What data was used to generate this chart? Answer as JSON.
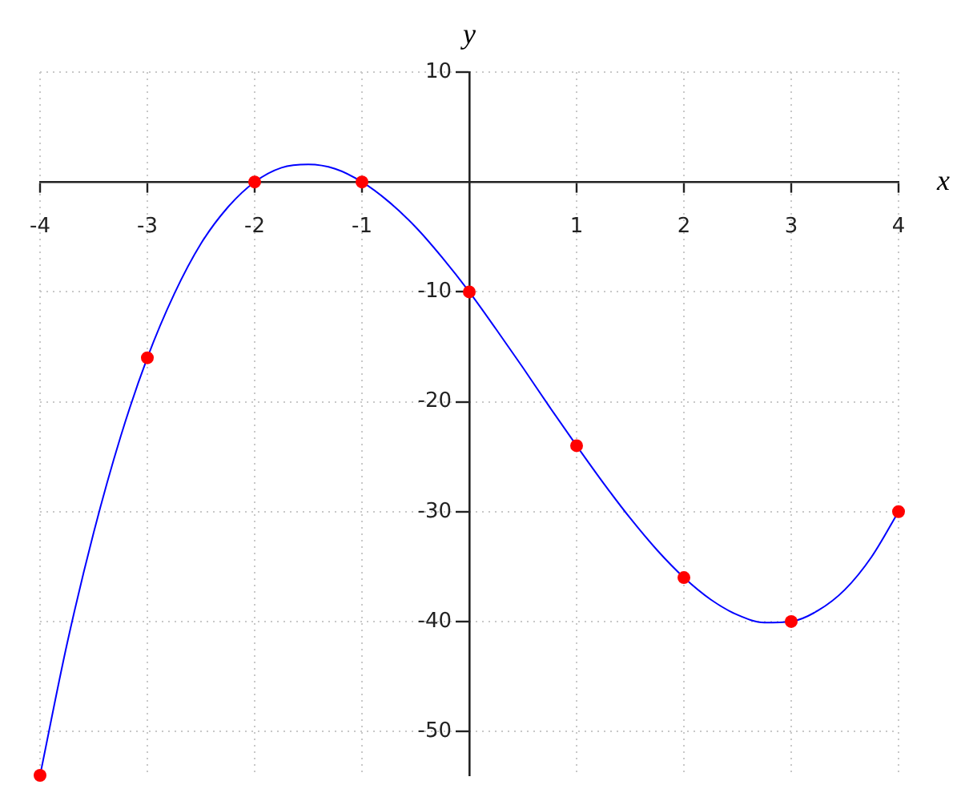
{
  "chart_data": {
    "type": "line",
    "xlabel": "x",
    "ylabel": "y",
    "xlim": [
      -4,
      4
    ],
    "ylim": [
      -54,
      10
    ],
    "xticks": [
      -4,
      -3,
      -2,
      -1,
      1,
      2,
      3,
      4
    ],
    "yticks": [
      10,
      -10,
      -20,
      -30,
      -40,
      -50
    ],
    "grid": true,
    "series": [
      {
        "type": "line",
        "color": "#0000ff",
        "marker": "none",
        "x": [
          -4,
          -3.75,
          -3.5,
          -3.25,
          -3,
          -2.75,
          -2.5,
          -2.25,
          -2,
          -1.75,
          -1.5,
          -1.25,
          -1,
          -0.75,
          -0.5,
          -0.25,
          0,
          0.25,
          0.5,
          0.75,
          1,
          1.25,
          1.5,
          1.75,
          2,
          2.25,
          2.5,
          2.75,
          3,
          3.25,
          3.5,
          3.75,
          4
        ],
        "values": [
          -54,
          -42.1,
          -31.9,
          -23.2,
          -16,
          -10.2,
          -5.6,
          -2.3,
          0,
          1.3,
          1.6,
          1.2,
          0,
          -1.8,
          -4.1,
          -6.9,
          -10,
          -13.4,
          -16.9,
          -20.5,
          -24,
          -27.4,
          -30.6,
          -33.5,
          -36,
          -38,
          -39.4,
          -40.1,
          -40,
          -39,
          -37.1,
          -34.1,
          -30
        ]
      },
      {
        "type": "scatter",
        "color": "#ff0000",
        "marker": "circle",
        "x": [
          -4,
          -3,
          -2,
          -1,
          0,
          1,
          2,
          3,
          4
        ],
        "values": [
          -54,
          -16,
          0,
          0,
          -10,
          -24,
          -36,
          -40,
          -30
        ]
      }
    ]
  }
}
